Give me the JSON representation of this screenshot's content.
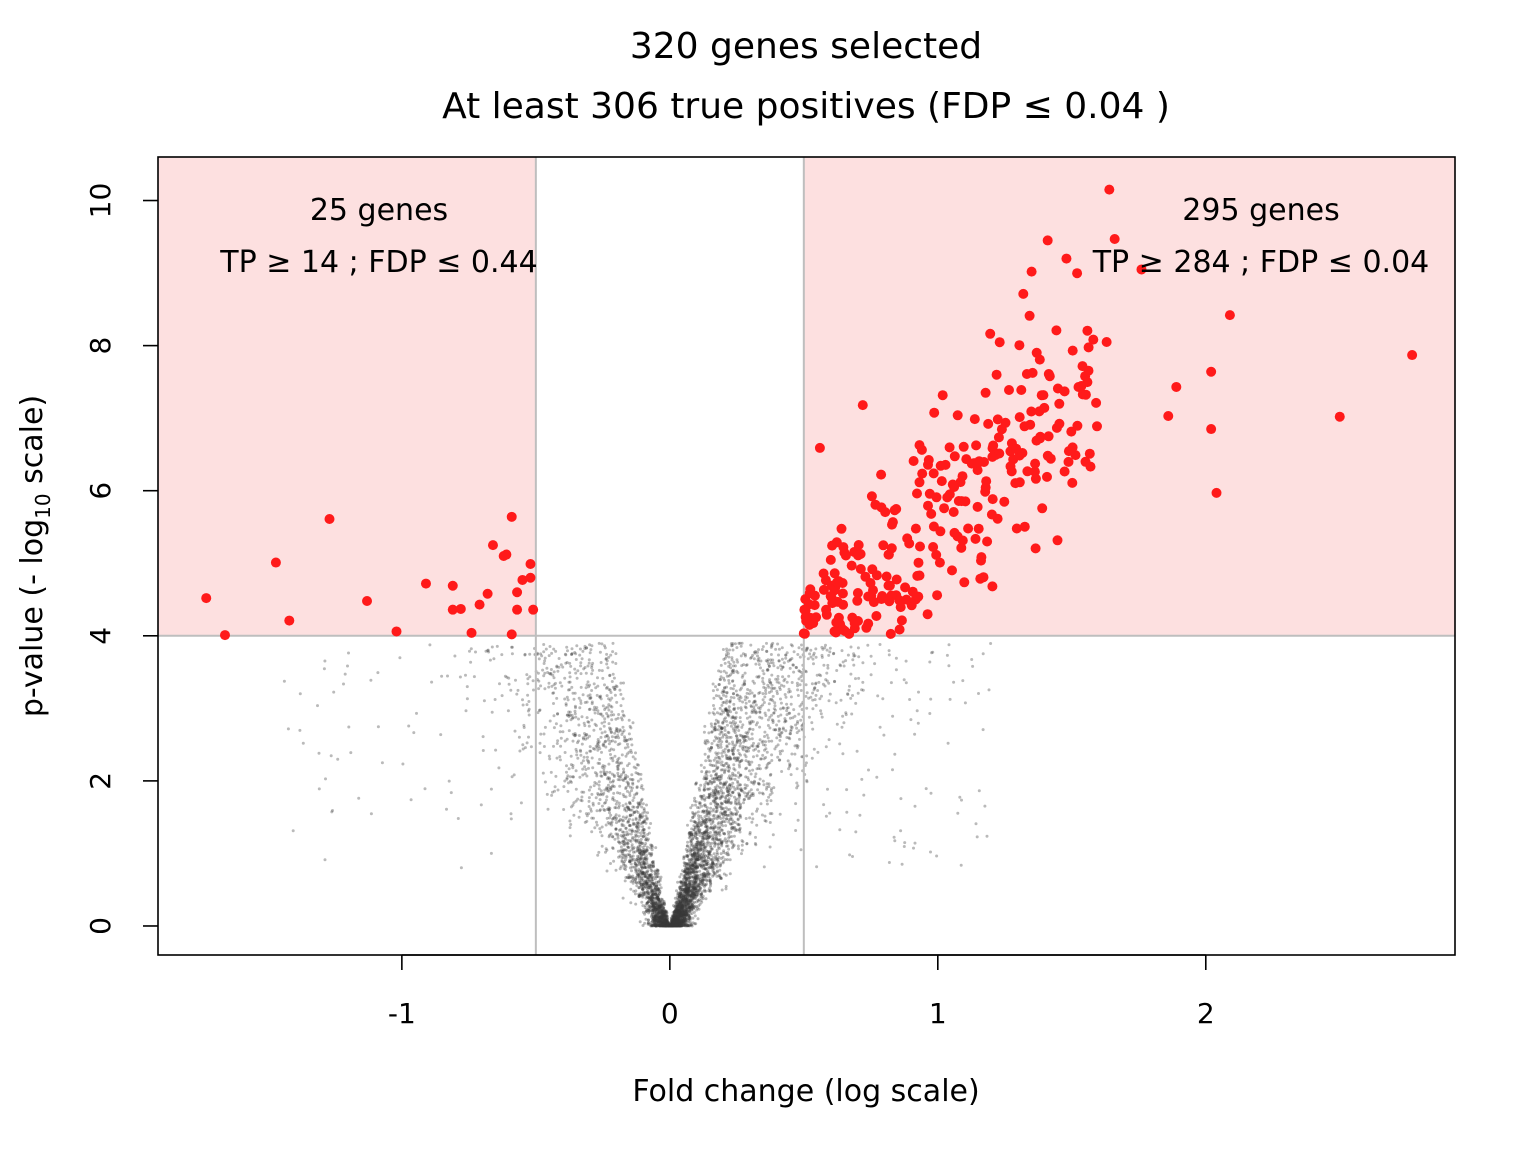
{
  "chart_data": {
    "type": "scatter",
    "title": "320 genes selected",
    "subtitle": "At least 306 true positives (FDP ≤ 0.04 )",
    "xlabel": "Fold change (log scale)",
    "ylabel": "p-value (- log",
    "ylabel_sub": "10",
    "ylabel_suffix": " scale)",
    "xlim": [
      -1.91,
      2.93
    ],
    "ylim": [
      -0.4,
      10.6
    ],
    "x_ticks": [
      -1,
      0,
      1,
      2
    ],
    "x_tick_labels": [
      "-1",
      "0",
      "1",
      "2"
    ],
    "y_ticks": [
      0,
      2,
      4,
      6,
      8,
      10
    ],
    "y_tick_labels": [
      "0",
      "2",
      "4",
      "6",
      "8",
      "10"
    ],
    "fold_change_thresholds": [
      -0.5,
      0.5
    ],
    "pvalue_threshold": 4,
    "colors": {
      "selected_region": "#fde0e0",
      "threshold_lines": "#bebebe",
      "selected_points": "#ff1a1a",
      "background_points": "#3a3a3a"
    },
    "annotations": {
      "left_count": "25 genes",
      "left_bound": "TP ≥ 14 ; FDP ≤ 0.44",
      "right_count": "295 genes",
      "right_bound": "TP ≥ 284 ;  FDP ≤ 0.04"
    },
    "background_points_note": "",
    "selected_left": [
      [
        -1.73,
        4.52
      ],
      [
        -1.66,
        4.01
      ],
      [
        -1.47,
        5.01
      ],
      [
        -1.42,
        4.21
      ],
      [
        -1.27,
        5.61
      ],
      [
        -1.13,
        4.48
      ],
      [
        -1.02,
        4.06
      ],
      [
        -0.91,
        4.72
      ],
      [
        -0.81,
        4.69
      ],
      [
        -0.81,
        4.36
      ],
      [
        -0.78,
        4.37
      ],
      [
        -0.74,
        4.04
      ],
      [
        -0.71,
        4.43
      ],
      [
        -0.68,
        4.58
      ],
      [
        -0.66,
        5.25
      ],
      [
        -0.62,
        5.1
      ],
      [
        -0.61,
        5.12
      ],
      [
        -0.59,
        5.64
      ],
      [
        -0.59,
        4.02
      ],
      [
        -0.57,
        4.36
      ],
      [
        -0.57,
        4.6
      ],
      [
        -0.55,
        4.77
      ],
      [
        -0.52,
        4.99
      ],
      [
        -0.52,
        4.8
      ],
      [
        -0.51,
        4.36
      ]
    ]
  }
}
